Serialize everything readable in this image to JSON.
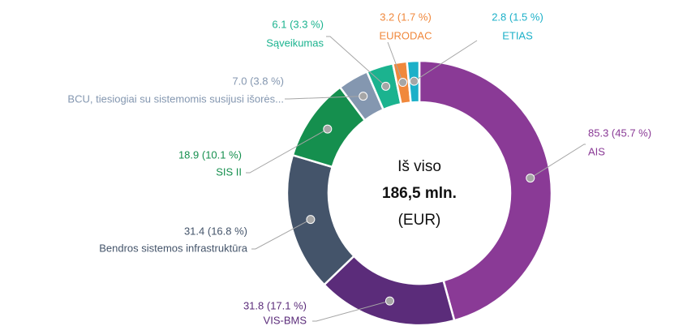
{
  "chart_data": {
    "type": "donut",
    "categories": [
      "AIS",
      "VIS-BMS",
      "Bendros sistemos infrastruktūra",
      "SIS II",
      "BCU, tiesiogiai su sistemomis susijusi išorės...",
      "Sąveikumas",
      "EURODAC",
      "ETIAS"
    ],
    "values": [
      85.3,
      31.8,
      31.4,
      18.9,
      7.0,
      6.1,
      3.2,
      2.8
    ],
    "value_labels": [
      "85.3 (45.7 %)",
      "31.8 (17.1 %)",
      "31.4 (16.8 %)",
      "18.9 (10.1 %)",
      "7.0 (3.8 %)",
      "6.1 (3.3 %)",
      "3.2 (1.7 %)",
      "2.8 (1.5 %)"
    ],
    "colors": [
      "#8a3a96",
      "#5b2c7a",
      "#44546a",
      "#158f4e",
      "#8497b0",
      "#1bb38f",
      "#f0883c",
      "#1cb0c8"
    ],
    "center_text": [
      "Iš viso",
      "186,5 mln.",
      "(EUR)"
    ]
  }
}
